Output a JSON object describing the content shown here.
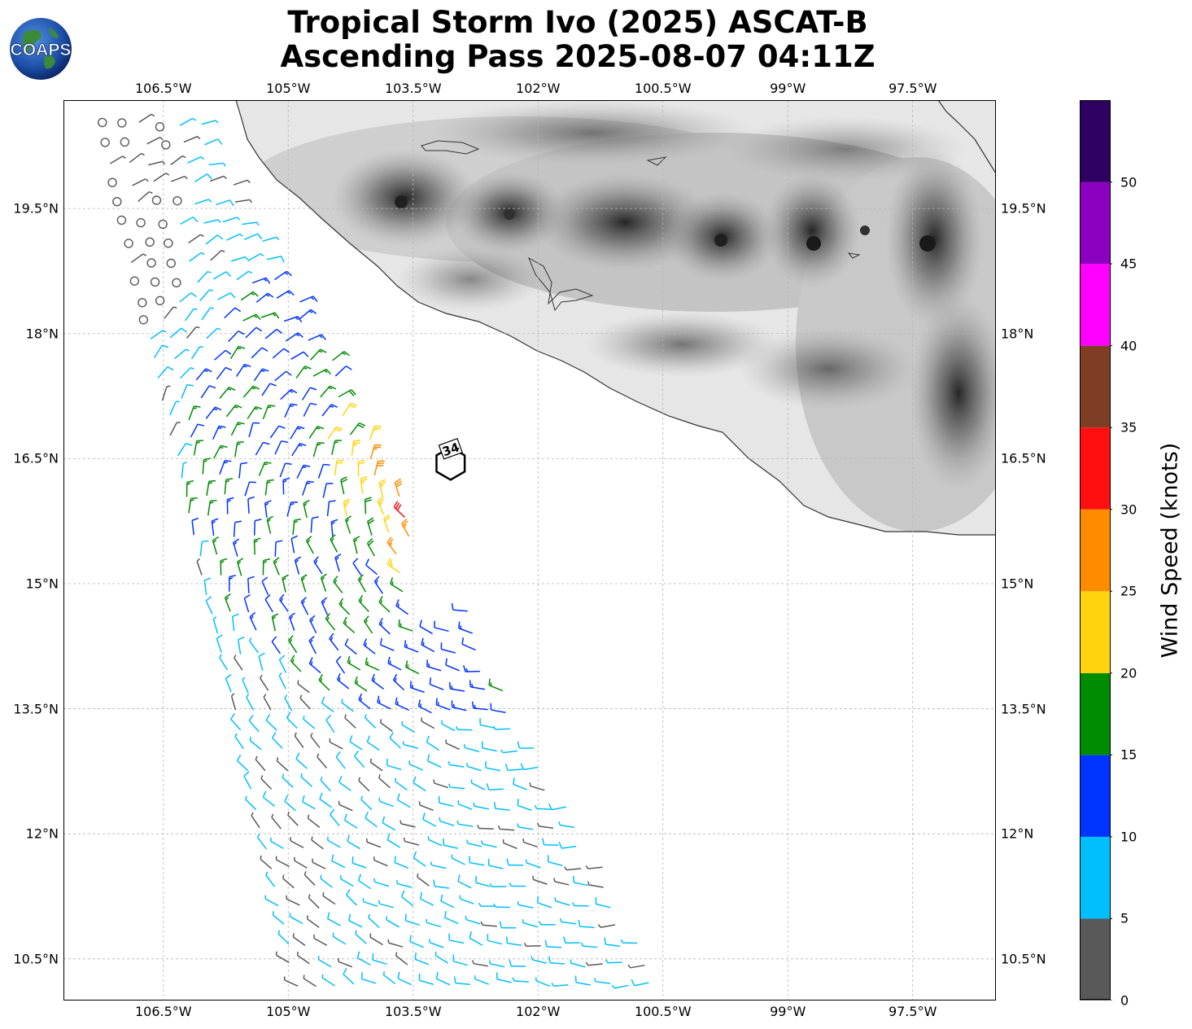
{
  "title_line1": "Tropical Storm Ivo (2025) ASCAT-B",
  "title_line2": "Ascending Pass 2025-08-07 04:11Z",
  "logo_text": "COAPS",
  "lon_ticks": [
    {
      "label": "106.5°W",
      "value": -106.5
    },
    {
      "label": "105°W",
      "value": -105.0
    },
    {
      "label": "103.5°W",
      "value": -103.5
    },
    {
      "label": "102°W",
      "value": -102.0
    },
    {
      "label": "100.5°W",
      "value": -100.5
    },
    {
      "label": "99°W",
      "value": -99.0
    },
    {
      "label": "97.5°W",
      "value": -97.5
    }
  ],
  "lat_ticks": [
    {
      "label": "19.5°N",
      "value": 19.5
    },
    {
      "label": "18°N",
      "value": 18.0
    },
    {
      "label": "16.5°N",
      "value": 16.5
    },
    {
      "label": "15°N",
      "value": 15.0
    },
    {
      "label": "13.5°N",
      "value": 13.5
    },
    {
      "label": "12°N",
      "value": 12.0
    },
    {
      "label": "10.5°N",
      "value": 10.5
    }
  ],
  "map_extent": {
    "lon_min": -107.7,
    "lon_max": -96.5,
    "lat_min": 10.0,
    "lat_max": 20.8
  },
  "storm_center": {
    "lon": -103.05,
    "lat": 16.5,
    "label": "34"
  },
  "colorbar": {
    "title": "Wind Speed (knots)",
    "ticks": [
      "0",
      "5",
      "10",
      "15",
      "20",
      "25",
      "30",
      "35",
      "40",
      "45",
      "50"
    ],
    "max_value": 55,
    "bins": [
      {
        "min": 0,
        "max": 5,
        "color": "#595959"
      },
      {
        "min": 5,
        "max": 10,
        "color": "#00bfff"
      },
      {
        "min": 10,
        "max": 15,
        "color": "#0033ff"
      },
      {
        "min": 15,
        "max": 20,
        "color": "#008c00"
      },
      {
        "min": 20,
        "max": 25,
        "color": "#ffd40f"
      },
      {
        "min": 25,
        "max": 30,
        "color": "#ff8c00"
      },
      {
        "min": 30,
        "max": 35,
        "color": "#ff0f0f"
      },
      {
        "min": 35,
        "max": 40,
        "color": "#803d26"
      },
      {
        "min": 40,
        "max": 45,
        "color": "#ff00ff"
      },
      {
        "min": 45,
        "max": 50,
        "color": "#8c00bf"
      },
      {
        "min": 50,
        "max": 55,
        "color": "#2e0061"
      }
    ]
  }
}
